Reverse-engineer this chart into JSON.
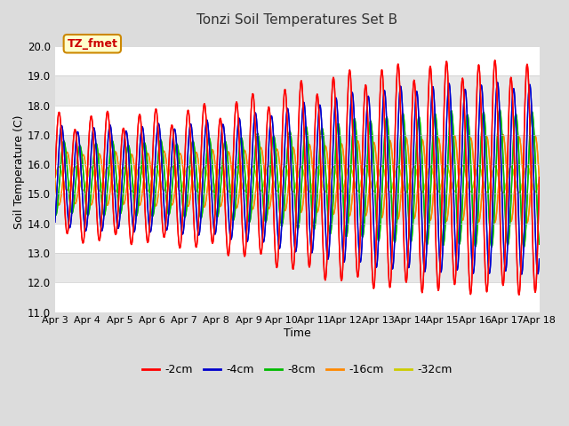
{
  "title": "Tonzi Soil Temperatures Set B",
  "xlabel": "Time",
  "ylabel": "Soil Temperature (C)",
  "ylim": [
    11.0,
    20.5
  ],
  "yticks": [
    11.0,
    12.0,
    13.0,
    14.0,
    15.0,
    16.0,
    17.0,
    18.0,
    19.0,
    20.0
  ],
  "bg_color": "#dcdcdc",
  "annotation_text": "TZ_fmet",
  "annotation_bg": "#ffffcc",
  "annotation_border": "#cc8800",
  "annotation_text_color": "#cc0000",
  "series_colors": [
    "#ff0000",
    "#0000cc",
    "#00bb00",
    "#ff8800",
    "#cccc00"
  ],
  "series_labels": [
    "-2cm",
    "-4cm",
    "-8cm",
    "-16cm",
    "-32cm"
  ],
  "x_tick_labels": [
    "Apr 3",
    "Apr 4",
    "Apr 5",
    "Apr 6",
    "Apr 7",
    "Apr 8",
    "Apr 9",
    "Apr 10",
    "Apr 11",
    "Apr 12",
    "Apr 13",
    "Apr 14",
    "Apr 15",
    "Apr 16",
    "Apr 17",
    "Apr 18"
  ]
}
